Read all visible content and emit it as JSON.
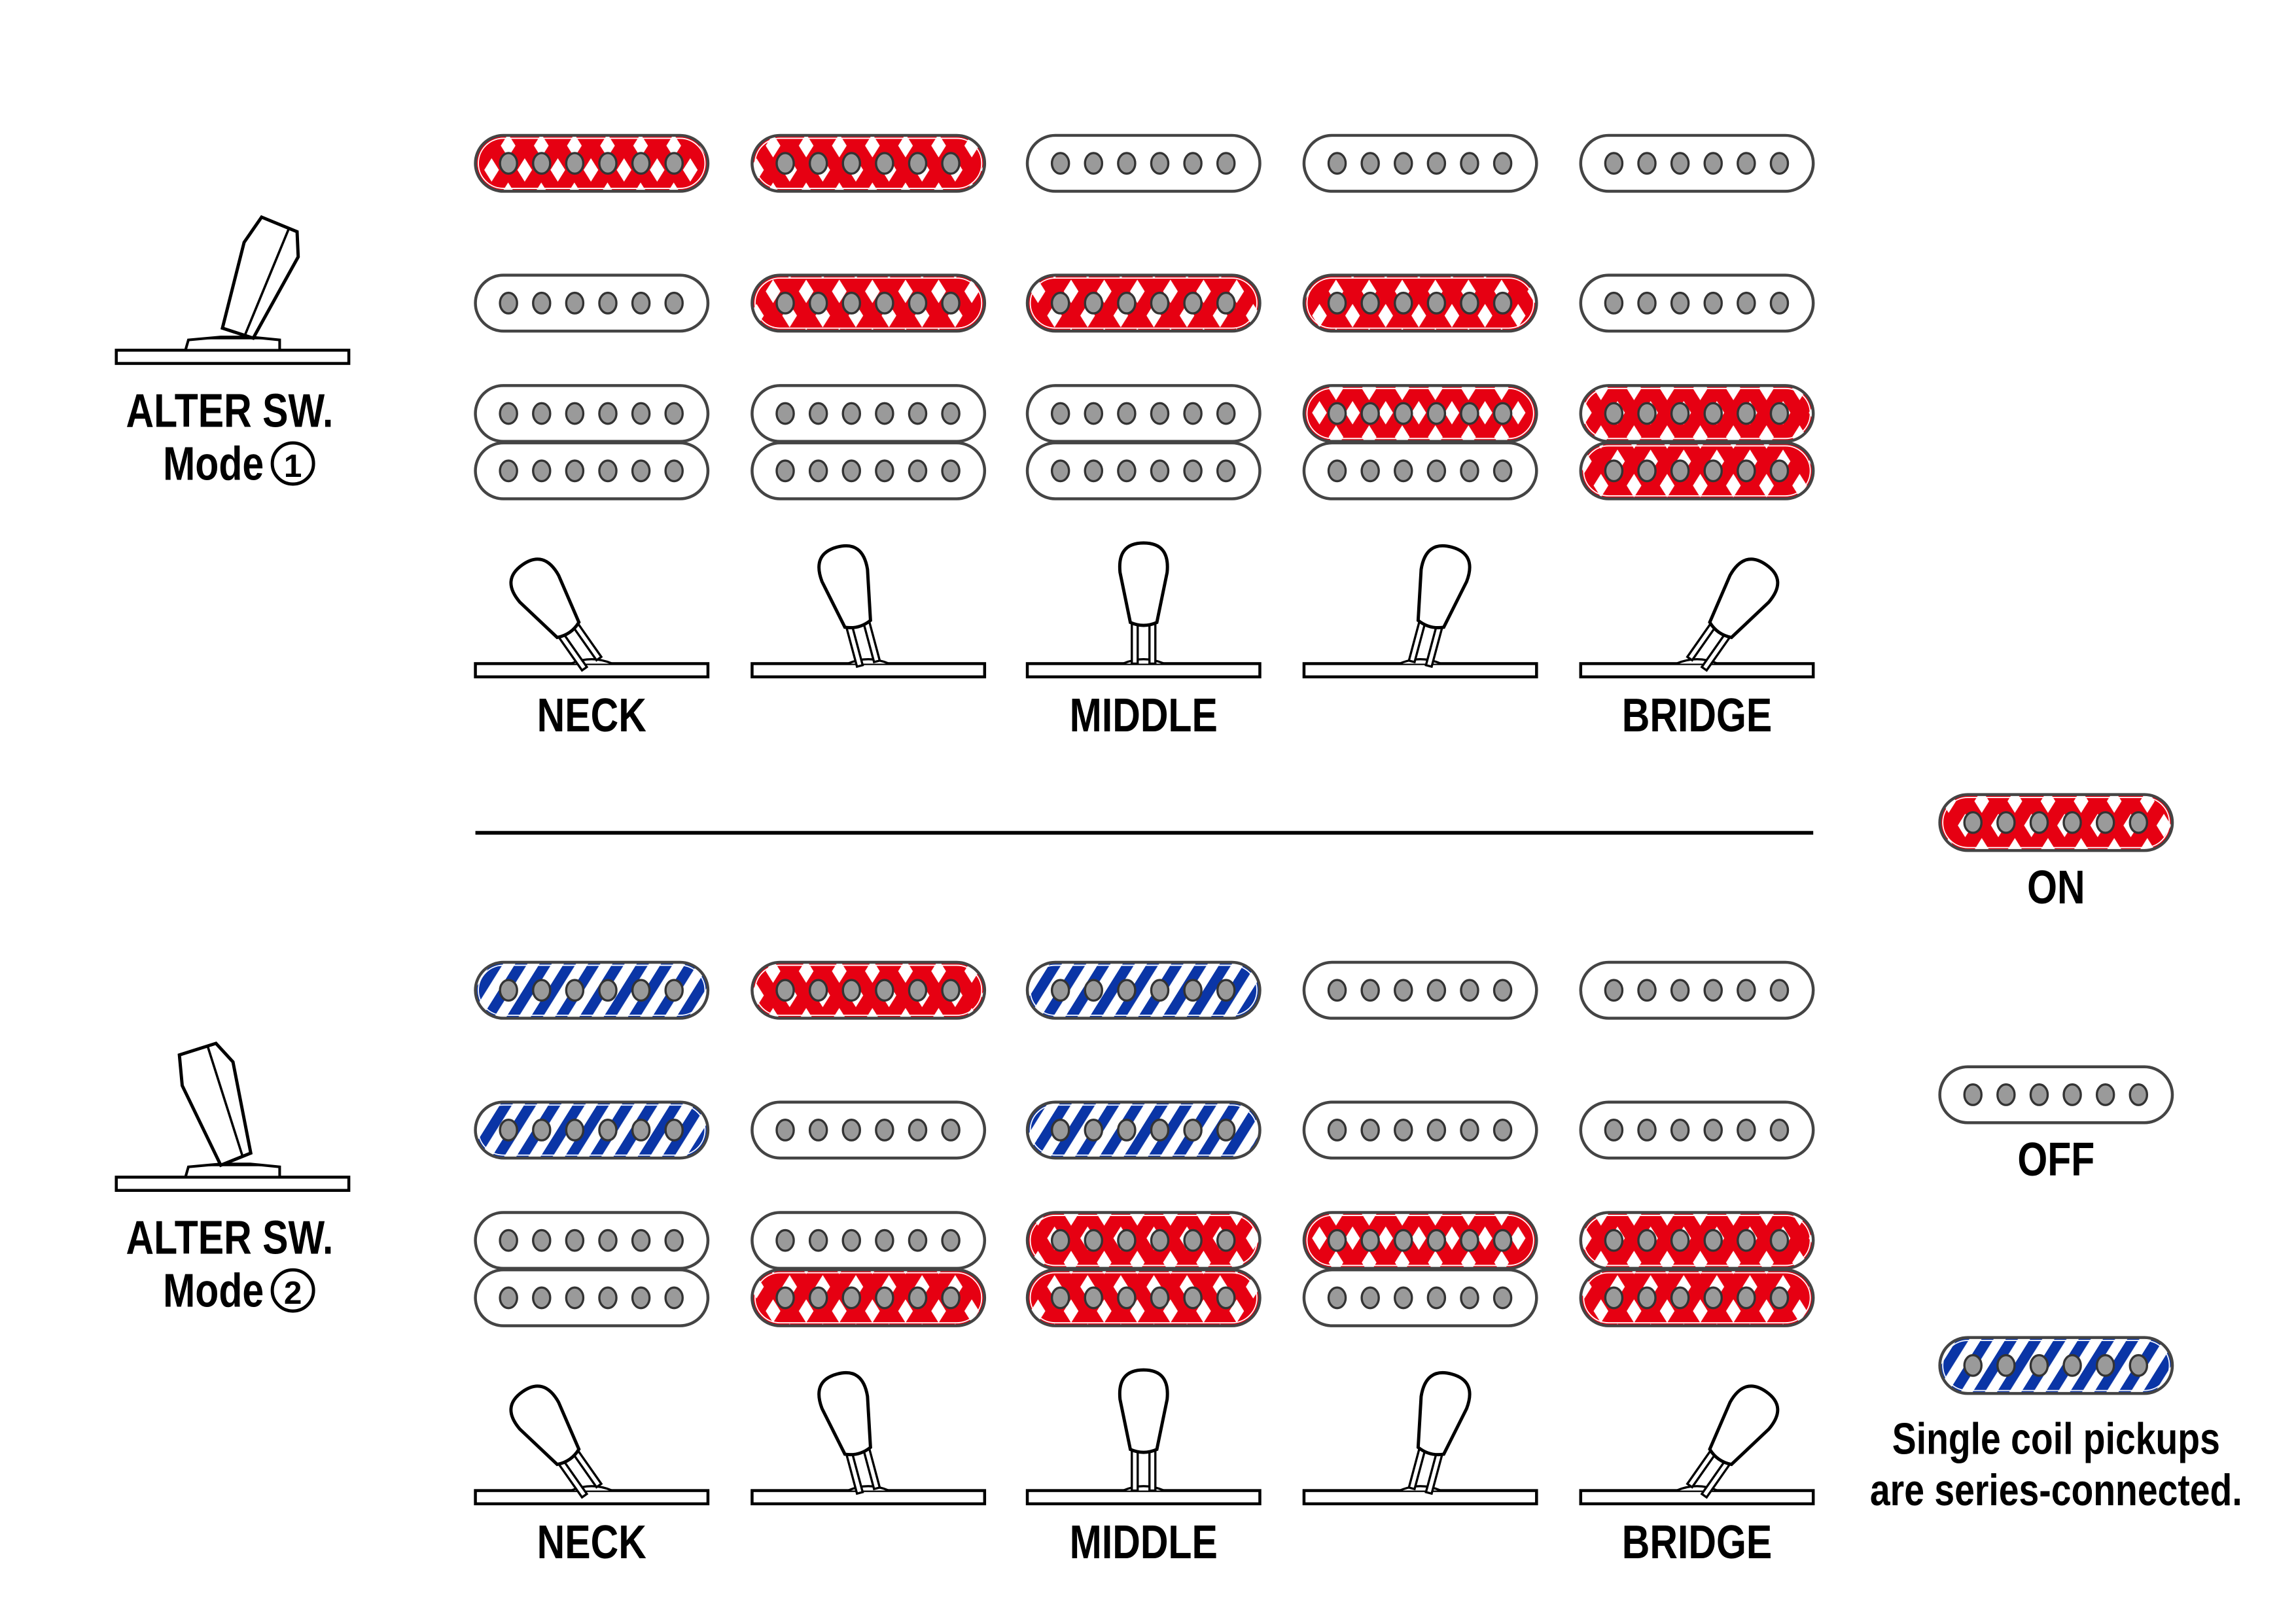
{
  "colors": {
    "on": "#e60012",
    "series": "#0a35a6",
    "pole": "#9a9a9a",
    "outline": "#444444"
  },
  "position_labels": [
    "NECK",
    "",
    "MIDDLE",
    "",
    "BRIDGE"
  ],
  "modes": [
    {
      "title": "ALTER SW.",
      "mode_label": "Mode",
      "mode_number": "1",
      "rows": {
        "neck_single": [
          "on",
          "on",
          "off",
          "off",
          "off"
        ],
        "middle_single": [
          "off",
          "on",
          "on",
          "on",
          "off"
        ],
        "bridge_hum_top": [
          "off",
          "off",
          "off",
          "on",
          "on"
        ],
        "bridge_hum_bottom": [
          "off",
          "off",
          "off",
          "off",
          "on"
        ]
      }
    },
    {
      "title": "ALTER SW.",
      "mode_label": "Mode",
      "mode_number": "2",
      "rows": {
        "neck_single": [
          "series",
          "on",
          "series",
          "off",
          "off"
        ],
        "middle_single": [
          "series",
          "off",
          "series",
          "off",
          "off"
        ],
        "bridge_hum_top": [
          "off",
          "off",
          "on",
          "on",
          "on"
        ],
        "bridge_hum_bottom": [
          "off",
          "on",
          "on",
          "off",
          "on"
        ]
      }
    }
  ],
  "legend": {
    "on": "ON",
    "off": "OFF",
    "series_line1": "Single coil pickups",
    "series_line2": "are series-connected."
  }
}
